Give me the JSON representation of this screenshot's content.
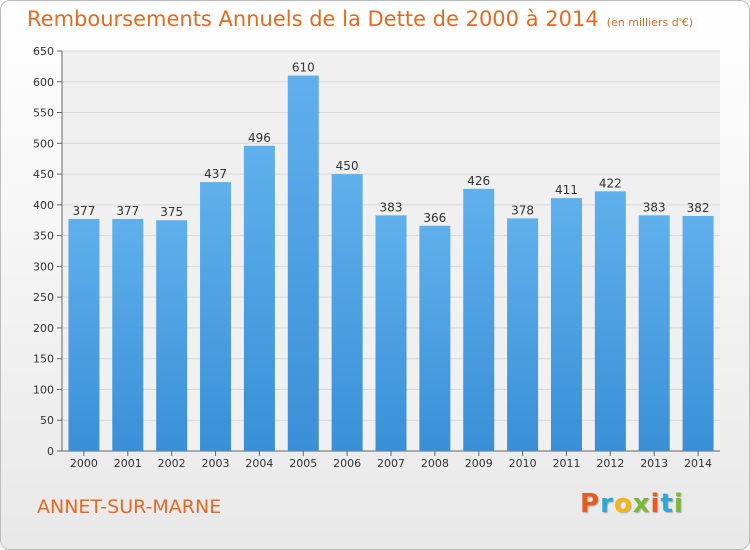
{
  "header": {
    "title": "Remboursements Annuels de la Dette de 2000 à 2014",
    "unit": "(en milliers d'€)"
  },
  "footer": {
    "commune": "ANNET-SUR-MARNE",
    "logo_letters": [
      "P",
      "r",
      "o",
      "x",
      "i",
      "t",
      "i"
    ],
    "logo_colors": [
      "#e85a1f",
      "#2ea7d8",
      "#f3b512",
      "#7bb83a",
      "#e85a1f",
      "#2ea7d8",
      "#7bb83a"
    ]
  },
  "chart_data": {
    "type": "bar",
    "title": "Remboursements Annuels de la Dette de 2000 à 2014",
    "categories": [
      "2000",
      "2001",
      "2002",
      "2003",
      "2004",
      "2005",
      "2006",
      "2007",
      "2008",
      "2009",
      "2010",
      "2011",
      "2012",
      "2013",
      "2014"
    ],
    "values": [
      377,
      377,
      375,
      437,
      496,
      610,
      450,
      383,
      366,
      426,
      378,
      411,
      422,
      383,
      382
    ],
    "ylim": [
      0,
      650
    ],
    "yticks": [
      0,
      50,
      100,
      150,
      200,
      250,
      300,
      350,
      400,
      450,
      500,
      550,
      600,
      650
    ],
    "grid": true,
    "bar_color": "#3a8fd6",
    "bar_color_light": "#5fb0ec",
    "grid_color": "#d8d8d8"
  }
}
